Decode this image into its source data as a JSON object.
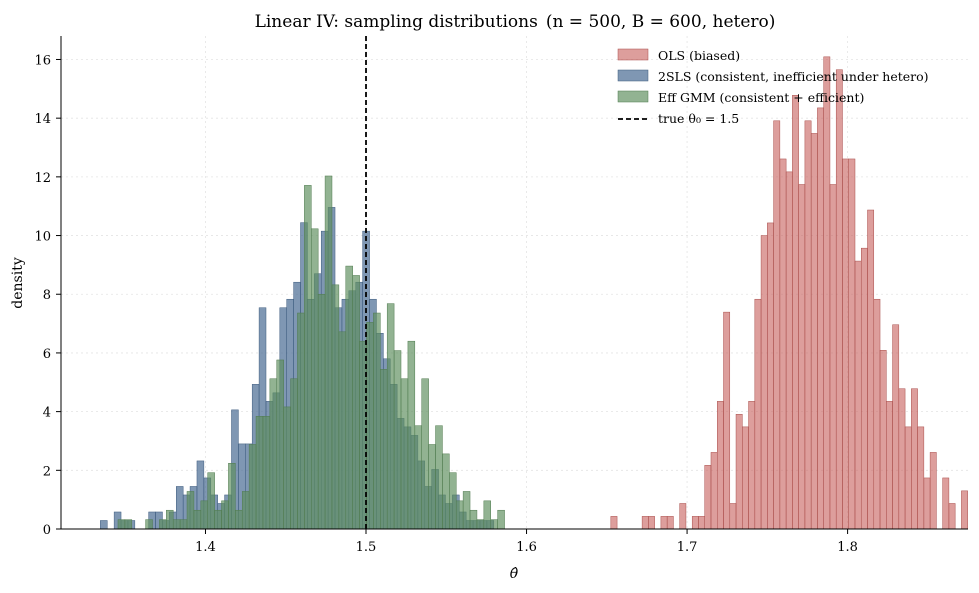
{
  "chart_data": {
    "type": "bar",
    "title_main": "Linear IV: sampling distributions",
    "title_params": "(n = 500, B = 600, hetero)",
    "xlabel": "θ̂",
    "ylabel": "density",
    "xlim": [
      1.31,
      1.875
    ],
    "ylim": [
      0,
      16.8
    ],
    "x_ticks": [
      1.4,
      1.5,
      1.6,
      1.7,
      1.8
    ],
    "x_tick_labels": [
      "1.4",
      "1.5",
      "1.6",
      "1.7",
      "1.8"
    ],
    "y_ticks": [
      0,
      2,
      4,
      6,
      8,
      10,
      12,
      14,
      16
    ],
    "y_tick_labels": [
      "0",
      "2",
      "4",
      "6",
      "8",
      "10",
      "12",
      "14",
      "16"
    ],
    "grid": true,
    "legend_position": "top-right",
    "reference_line": {
      "x": 1.5,
      "label": "true θ₀ = 1.5",
      "color": "#000000",
      "style": "dashed"
    },
    "series": [
      {
        "name": "OLS (biased)",
        "color": "#c8625f",
        "edge": "#a94e4b",
        "opacity": 0.62,
        "bin_start": 1.6525,
        "bin_width": 0.0039,
        "values": [
          0.43,
          0,
          0,
          0,
          0,
          0.43,
          0.43,
          0,
          0.43,
          0.43,
          0,
          0.87,
          0,
          0.43,
          0.43,
          2.17,
          2.61,
          4.35,
          7.39,
          0.87,
          3.91,
          3.48,
          4.35,
          7.83,
          10.0,
          10.43,
          13.91,
          12.61,
          12.17,
          14.78,
          11.74,
          13.91,
          13.48,
          14.35,
          16.09,
          11.74,
          15.65,
          12.61,
          12.61,
          9.13,
          9.57,
          10.87,
          7.83,
          6.09,
          4.35,
          6.96,
          4.78,
          3.48,
          4.78,
          3.48,
          1.74,
          2.61,
          0,
          1.74,
          0.87,
          0,
          1.3
        ]
      },
      {
        "name": "2SLS (consistent, inefficient under hetero)",
        "color": "#4d6f96",
        "edge": "#3c5a7d",
        "opacity": 0.72,
        "bin_start": 1.3345,
        "bin_width": 0.0043,
        "values": [
          0.29,
          0,
          0.58,
          0.29,
          0.29,
          0,
          0,
          0.58,
          0.58,
          0.29,
          0.58,
          1.45,
          1.16,
          1.45,
          2.32,
          1.74,
          1.16,
          0.87,
          1.16,
          4.06,
          2.9,
          2.9,
          4.93,
          7.54,
          4.35,
          4.64,
          7.54,
          7.83,
          8.41,
          10.44,
          7.83,
          8.7,
          10.15,
          10.96,
          7.54,
          7.83,
          8.12,
          8.41,
          10.15,
          7.83,
          6.67,
          5.8,
          4.93,
          3.77,
          3.48,
          3.19,
          2.32,
          1.45,
          2.03,
          1.16,
          0.87,
          1.16,
          0.58,
          0.29,
          0.29,
          0.29,
          0.29
        ]
      },
      {
        "name": "Eff GMM (consistent + efficient)",
        "color": "#5f8f5e",
        "edge": "#4f7a4e",
        "opacity": 0.68,
        "bin_start": 1.3455,
        "bin_width": 0.0043,
        "values": [
          0.32,
          0.32,
          0,
          0,
          0.32,
          0,
          0.32,
          0.64,
          0.32,
          0.32,
          1.28,
          0.64,
          0.96,
          1.92,
          0.64,
          0.96,
          2.24,
          0.64,
          1.28,
          2.88,
          3.84,
          3.84,
          5.12,
          5.76,
          4.16,
          5.12,
          7.36,
          11.71,
          10.23,
          8.0,
          12.03,
          8.32,
          6.72,
          8.96,
          8.64,
          6.4,
          7.04,
          7.36,
          5.44,
          7.68,
          6.08,
          5.12,
          6.4,
          3.52,
          5.12,
          2.88,
          3.52,
          2.56,
          1.92,
          0.96,
          1.28,
          0.64,
          0.32,
          0.96,
          0.32,
          0.64,
          0
        ]
      }
    ]
  }
}
